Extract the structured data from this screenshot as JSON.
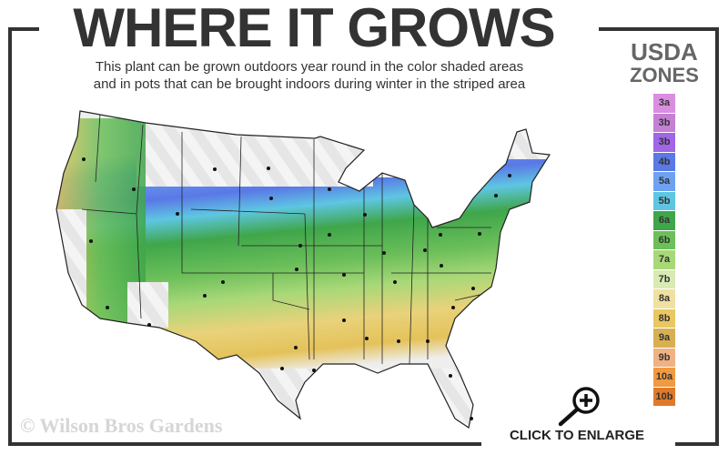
{
  "header": {
    "title": "WHERE IT GROWS",
    "subtitle_line1": "This plant can be grown outdoors year round in the color shaded areas",
    "subtitle_line2": "and in pots that can be brought indoors during winter in the striped area"
  },
  "legend": {
    "title_line1": "USDA",
    "title_line2": "ZONES",
    "zones": [
      {
        "label": "3a",
        "color": "#d98ee0"
      },
      {
        "label": "3b",
        "color": "#c57fd4"
      },
      {
        "label": "3b",
        "color": "#9f66e6"
      },
      {
        "label": "4b",
        "color": "#5a78e6"
      },
      {
        "label": "5a",
        "color": "#6ea2f0"
      },
      {
        "label": "5b",
        "color": "#5ec6e2"
      },
      {
        "label": "6a",
        "color": "#3fa64a"
      },
      {
        "label": "6b",
        "color": "#6cbf5a"
      },
      {
        "label": "7a",
        "color": "#a8d878"
      },
      {
        "label": "7b",
        "color": "#d9eab2"
      },
      {
        "label": "8a",
        "color": "#f0e0a2"
      },
      {
        "label": "8b",
        "color": "#e9c862"
      },
      {
        "label": "9a",
        "color": "#d8b052"
      },
      {
        "label": "9b",
        "color": "#f0b282"
      },
      {
        "label": "10a",
        "color": "#f09a42"
      },
      {
        "label": "10b",
        "color": "#e07a2a"
      }
    ]
  },
  "footer": {
    "copyright": "© Wilson Bros Gardens",
    "enlarge_label": "CLICK TO ENLARGE",
    "enlarge_icon": "zoom-in-magnifier-icon"
  }
}
